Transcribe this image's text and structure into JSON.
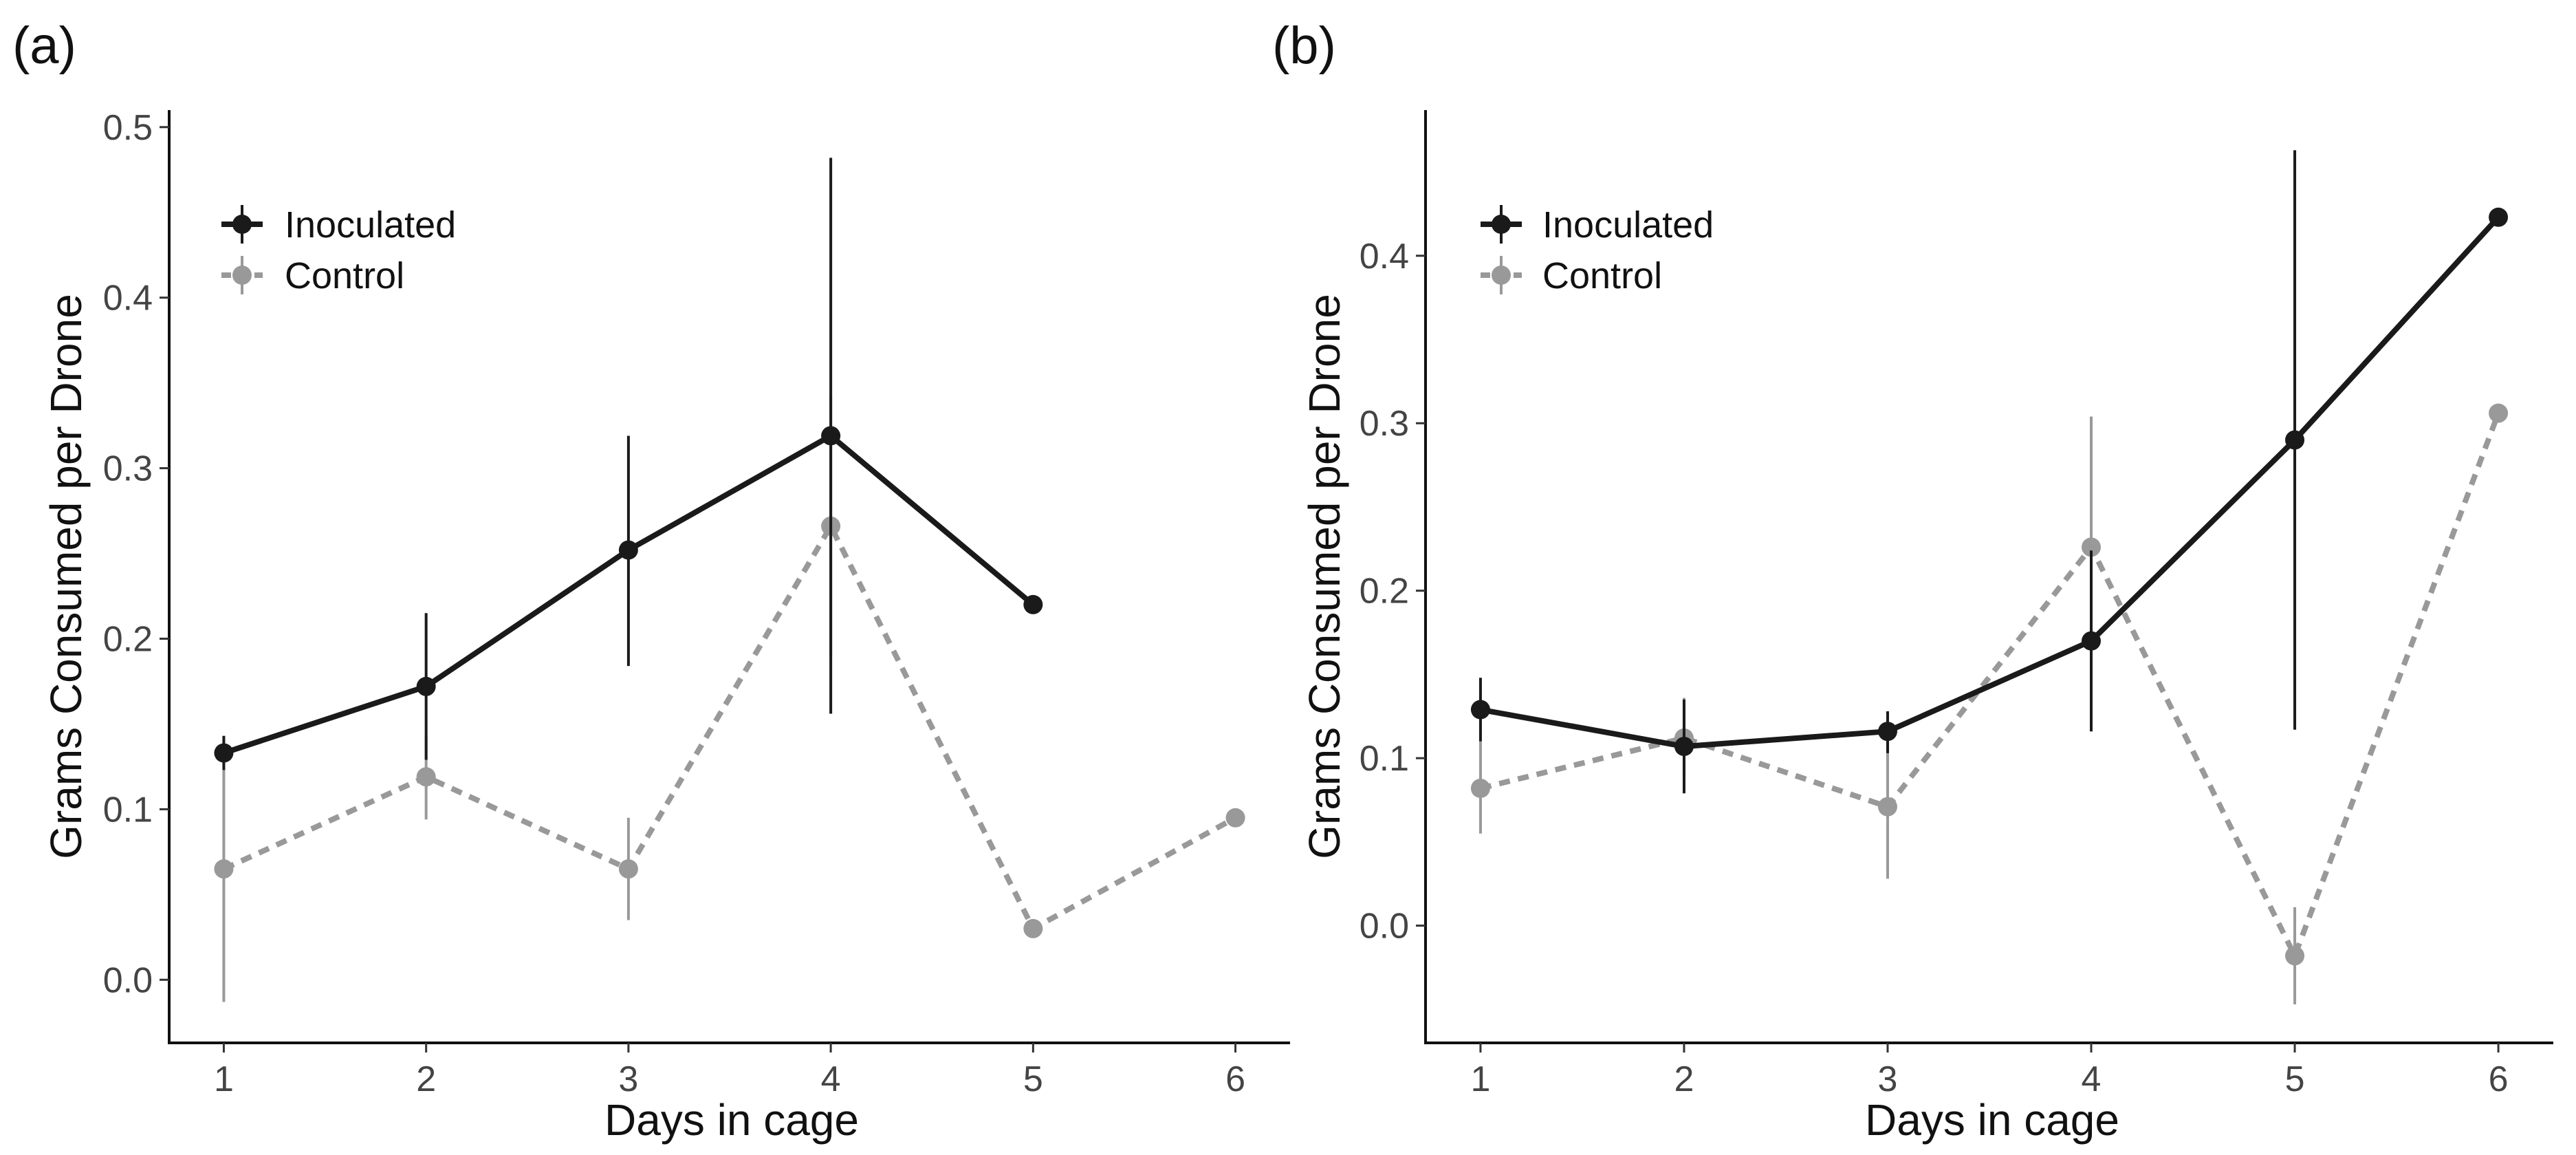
{
  "chart_data": [
    {
      "type": "line",
      "panel_label": "(a)",
      "xlabel": "Days in cage",
      "ylabel": "Grams Consumed per Drone",
      "xlim": [
        0.73,
        6.27
      ],
      "ylim": [
        -0.037,
        0.51
      ],
      "x_ticks": [
        "1",
        "2",
        "3",
        "4",
        "5",
        "6"
      ],
      "y_ticks": [
        "0.0",
        "0.1",
        "0.2",
        "0.3",
        "0.4",
        "0.5"
      ],
      "legend": {
        "position": "top-left",
        "entries": [
          "Inoculated",
          "Control"
        ]
      },
      "series": [
        {
          "name": "Inoculated",
          "color": "#1a1a1a",
          "linestyle": "solid",
          "points": [
            {
              "x": 1,
              "y": 0.133,
              "lo": 0.123,
              "hi": 0.143
            },
            {
              "x": 2,
              "y": 0.172,
              "lo": 0.129,
              "hi": 0.215
            },
            {
              "x": 3,
              "y": 0.252,
              "lo": 0.184,
              "hi": 0.319
            },
            {
              "x": 4,
              "y": 0.319,
              "lo": 0.156,
              "hi": 0.482
            },
            {
              "x": 5,
              "y": 0.22,
              "lo": null,
              "hi": null
            }
          ]
        },
        {
          "name": "Control",
          "color": "#999999",
          "linestyle": "dashed",
          "points": [
            {
              "x": 1,
              "y": 0.065,
              "lo": -0.013,
              "hi": 0.143
            },
            {
              "x": 2,
              "y": 0.119,
              "lo": 0.094,
              "hi": 0.143
            },
            {
              "x": 3,
              "y": 0.065,
              "lo": 0.035,
              "hi": 0.095
            },
            {
              "x": 4,
              "y": 0.266,
              "lo": 0.189,
              "hi": 0.343
            },
            {
              "x": 5,
              "y": 0.03,
              "lo": null,
              "hi": null
            },
            {
              "x": 6,
              "y": 0.095,
              "lo": null,
              "hi": null
            }
          ]
        }
      ]
    },
    {
      "type": "line",
      "panel_label": "(b)",
      "xlabel": "Days in cage",
      "ylabel": "Grams Consumed per Drone",
      "xlim": [
        0.73,
        6.27
      ],
      "ylim": [
        -0.07,
        0.487
      ],
      "x_ticks": [
        "1",
        "2",
        "3",
        "4",
        "5",
        "6"
      ],
      "y_ticks": [
        "0.0",
        "0.1",
        "0.2",
        "0.3",
        "0.4"
      ],
      "legend": {
        "position": "top-left",
        "entries": [
          "Inoculated",
          "Control"
        ]
      },
      "series": [
        {
          "name": "Inoculated",
          "color": "#1a1a1a",
          "linestyle": "solid",
          "points": [
            {
              "x": 1,
              "y": 0.129,
              "lo": 0.11,
              "hi": 0.148
            },
            {
              "x": 2,
              "y": 0.107,
              "lo": 0.079,
              "hi": 0.135
            },
            {
              "x": 3,
              "y": 0.116,
              "lo": 0.103,
              "hi": 0.128
            },
            {
              "x": 4,
              "y": 0.17,
              "lo": 0.116,
              "hi": 0.224
            },
            {
              "x": 5,
              "y": 0.29,
              "lo": 0.117,
              "hi": 0.463
            },
            {
              "x": 6,
              "y": 0.423,
              "lo": null,
              "hi": null
            }
          ]
        },
        {
          "name": "Control",
          "color": "#999999",
          "linestyle": "dashed",
          "points": [
            {
              "x": 1,
              "y": 0.082,
              "lo": 0.055,
              "hi": 0.11
            },
            {
              "x": 2,
              "y": 0.112,
              "lo": 0.088,
              "hi": 0.136
            },
            {
              "x": 3,
              "y": 0.071,
              "lo": 0.028,
              "hi": 0.113
            },
            {
              "x": 4,
              "y": 0.226,
              "lo": 0.148,
              "hi": 0.304
            },
            {
              "x": 5,
              "y": -0.018,
              "lo": -0.047,
              "hi": 0.011
            },
            {
              "x": 6,
              "y": 0.306,
              "lo": null,
              "hi": null
            }
          ]
        }
      ]
    }
  ]
}
